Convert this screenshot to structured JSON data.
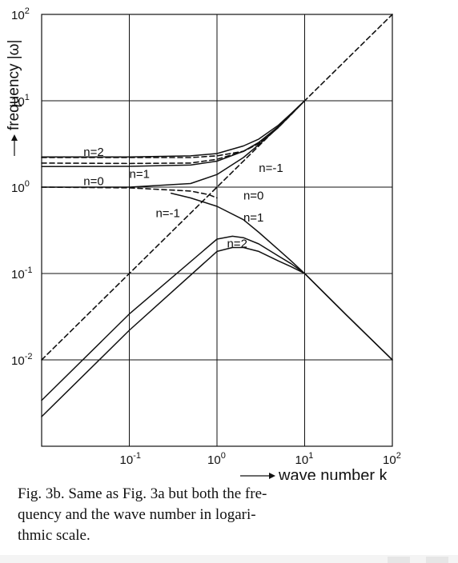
{
  "chart_data": {
    "type": "line",
    "xscale": "log",
    "yscale": "log",
    "xlim": [
      0.01,
      100
    ],
    "ylim": [
      0.001,
      100
    ],
    "grid": true,
    "xlabel": "wave number k",
    "ylabel": "frequency |ω|",
    "x_tick_labels": [
      {
        "base": "10",
        "exp": "-1",
        "value": 0.1
      },
      {
        "base": "10",
        "exp": "0",
        "value": 1
      },
      {
        "base": "10",
        "exp": "1",
        "value": 10
      },
      {
        "base": "10",
        "exp": "2",
        "value": 100
      }
    ],
    "y_tick_labels": [
      {
        "base": "10",
        "exp": "-2",
        "value": 0.01
      },
      {
        "base": "10",
        "exp": "-1",
        "value": 0.1
      },
      {
        "base": "10",
        "exp": "0",
        "value": 1
      },
      {
        "base": "10",
        "exp": "1",
        "value": 10
      },
      {
        "base": "10",
        "exp": "2",
        "value": 100
      }
    ],
    "series": [
      {
        "name": "n=2",
        "style": "solid",
        "x": [
          0.01,
          0.1,
          0.5,
          1,
          2,
          3,
          5,
          7,
          10
        ],
        "y": [
          2.24,
          2.24,
          2.3,
          2.45,
          3.0,
          3.6,
          5.2,
          7.1,
          10
        ]
      },
      {
        "name": "n=1",
        "style": "solid",
        "x": [
          0.01,
          0.1,
          0.5,
          1,
          2,
          3,
          5,
          7,
          10
        ],
        "y": [
          1.73,
          1.74,
          1.8,
          2.0,
          2.6,
          3.3,
          5.0,
          7.0,
          10
        ]
      },
      {
        "name": "n=0",
        "style": "solid",
        "x": [
          0.01,
          0.1,
          0.5,
          1,
          2,
          3,
          5,
          7,
          10
        ],
        "y": [
          1.0,
          1.0,
          1.1,
          1.4,
          2.2,
          3.1,
          4.9,
          6.9,
          10
        ]
      },
      {
        "name": "n=0",
        "style": "solid",
        "x": [
          0.3,
          0.5,
          1,
          2,
          3,
          5,
          7,
          10,
          30,
          100
        ],
        "y": [
          0.85,
          0.75,
          0.6,
          0.42,
          0.3,
          0.19,
          0.14,
          0.1,
          0.033,
          0.01
        ]
      },
      {
        "name": "n=1",
        "style": "solid",
        "x": [
          0.01,
          0.1,
          1,
          1.5,
          2,
          3,
          5,
          7,
          10,
          30,
          100
        ],
        "y": [
          0.0034,
          0.034,
          0.25,
          0.27,
          0.26,
          0.22,
          0.16,
          0.13,
          0.1,
          0.033,
          0.01
        ]
      },
      {
        "name": "n=2",
        "style": "solid",
        "x": [
          0.01,
          0.1,
          1,
          1.5,
          2,
          3,
          5,
          7,
          10,
          30,
          100
        ],
        "y": [
          0.0022,
          0.022,
          0.18,
          0.2,
          0.2,
          0.18,
          0.14,
          0.12,
          0.1,
          0.033,
          0.01
        ]
      },
      {
        "name": "n=-1",
        "style": "dashed",
        "x": [
          0.01,
          100
        ],
        "y": [
          0.01,
          100
        ]
      },
      {
        "name": "",
        "style": "dashed",
        "x": [
          0.01,
          0.1,
          0.5,
          1,
          2,
          3,
          5,
          7,
          10
        ],
        "y": [
          2.2,
          2.2,
          2.2,
          2.3,
          2.6,
          3.2,
          5.0,
          7.0,
          10
        ]
      },
      {
        "name": "",
        "style": "dashed",
        "x": [
          0.01,
          0.1,
          0.5,
          1,
          2,
          3,
          5,
          7,
          10
        ],
        "y": [
          1.9,
          1.88,
          1.9,
          2.1,
          2.6,
          3.2,
          4.9,
          6.9,
          10
        ]
      },
      {
        "name": "",
        "style": "dashed",
        "x": [
          0.01,
          0.1,
          0.5,
          0.8,
          1
        ],
        "y": [
          1.0,
          0.98,
          0.9,
          0.82,
          0.75
        ]
      }
    ],
    "annotations": [
      {
        "text": "n=2",
        "x": 0.03,
        "y": 2.3
      },
      {
        "text": "n=1",
        "x": 0.1,
        "y": 1.28
      },
      {
        "text": "n=0",
        "x": 0.03,
        "y": 1.05
      },
      {
        "text": "n=-1",
        "x": 3.0,
        "y": 1.5
      },
      {
        "text": "n=-1",
        "x": 0.2,
        "y": 0.45
      },
      {
        "text": "n=0",
        "x": 2.0,
        "y": 0.72
      },
      {
        "text": "n=1",
        "x": 2.0,
        "y": 0.4
      },
      {
        "text": "n=2",
        "x": 1.3,
        "y": 0.2
      }
    ]
  },
  "caption": {
    "line1": "Fig. 3b.  Same as Fig. 3a  but  both the fre-",
    "line2": "quency  and  the  wave  number  in  logari-",
    "line3": "thmic scale."
  },
  "colors": {
    "ink": "#111111",
    "grid": "#111111",
    "background": "#ffffff"
  }
}
